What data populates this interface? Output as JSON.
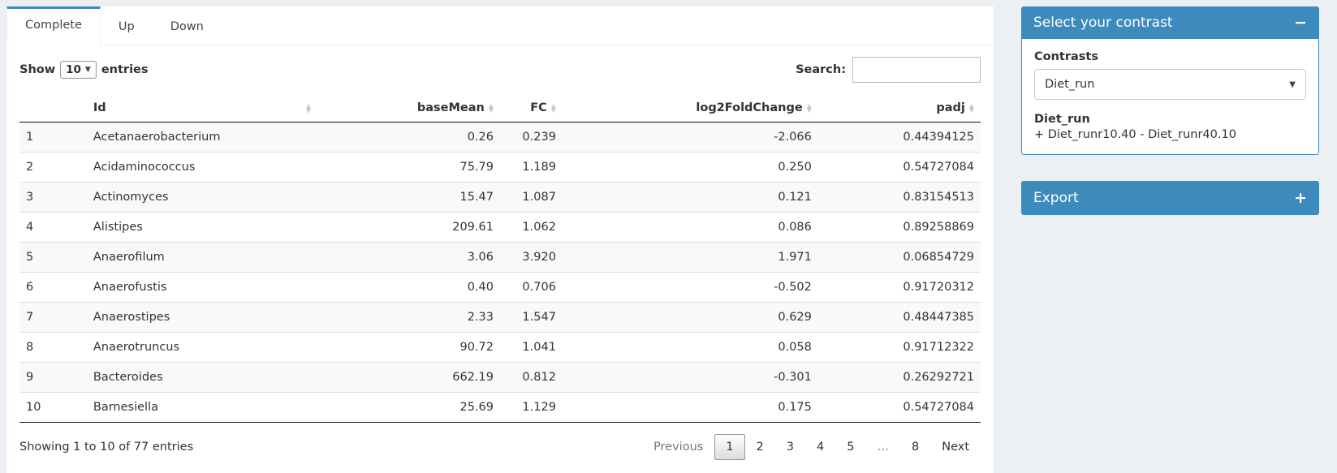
{
  "colors": {
    "accent": "#3d8bbd",
    "stripe": "#f9f9f9",
    "page_bg": "#ecf0f5"
  },
  "tabs": [
    {
      "label": "Complete",
      "active": true
    },
    {
      "label": "Up",
      "active": false
    },
    {
      "label": "Down",
      "active": false
    }
  ],
  "table_controls": {
    "show_label": "Show",
    "page_length": "10",
    "entries_label": "entries",
    "search_label": "Search:",
    "search_value": ""
  },
  "table": {
    "columns": [
      "",
      "Id",
      "baseMean",
      "FC",
      "log2FoldChange",
      "padj"
    ],
    "rows": [
      {
        "num": "1",
        "id": "Acetanaerobacterium",
        "baseMean": "0.26",
        "fc": "0.239",
        "log2fc": "-2.066",
        "padj": "0.44394125"
      },
      {
        "num": "2",
        "id": "Acidaminococcus",
        "baseMean": "75.79",
        "fc": "1.189",
        "log2fc": "0.250",
        "padj": "0.54727084"
      },
      {
        "num": "3",
        "id": "Actinomyces",
        "baseMean": "15.47",
        "fc": "1.087",
        "log2fc": "0.121",
        "padj": "0.83154513"
      },
      {
        "num": "4",
        "id": "Alistipes",
        "baseMean": "209.61",
        "fc": "1.062",
        "log2fc": "0.086",
        "padj": "0.89258869"
      },
      {
        "num": "5",
        "id": "Anaerofilum",
        "baseMean": "3.06",
        "fc": "3.920",
        "log2fc": "1.971",
        "padj": "0.06854729"
      },
      {
        "num": "6",
        "id": "Anaerofustis",
        "baseMean": "0.40",
        "fc": "0.706",
        "log2fc": "-0.502",
        "padj": "0.91720312"
      },
      {
        "num": "7",
        "id": "Anaerostipes",
        "baseMean": "2.33",
        "fc": "1.547",
        "log2fc": "0.629",
        "padj": "0.48447385"
      },
      {
        "num": "8",
        "id": "Anaerotruncus",
        "baseMean": "90.72",
        "fc": "1.041",
        "log2fc": "0.058",
        "padj": "0.91712322"
      },
      {
        "num": "9",
        "id": "Bacteroides",
        "baseMean": "662.19",
        "fc": "0.812",
        "log2fc": "-0.301",
        "padj": "0.26292721"
      },
      {
        "num": "10",
        "id": "Barnesiella",
        "baseMean": "25.69",
        "fc": "1.129",
        "log2fc": "0.175",
        "padj": "0.54727084"
      }
    ]
  },
  "table_footer": {
    "info": "Showing 1 to 10 of 77 entries",
    "pagination": {
      "previous": "Previous",
      "pages": [
        "1",
        "2",
        "3",
        "4",
        "5",
        "…",
        "8"
      ],
      "active_page": "1",
      "next": "Next"
    }
  },
  "contrast_panel": {
    "title": "Select your contrast",
    "collapse_icon": "−",
    "contrasts_label": "Contrasts",
    "selected_contrast": "Diet_run",
    "contrast_name": "Diet_run",
    "contrast_formula": "+ Diet_runr10.40 - Diet_runr40.10"
  },
  "export_panel": {
    "title": "Export",
    "collapse_icon": "+"
  }
}
